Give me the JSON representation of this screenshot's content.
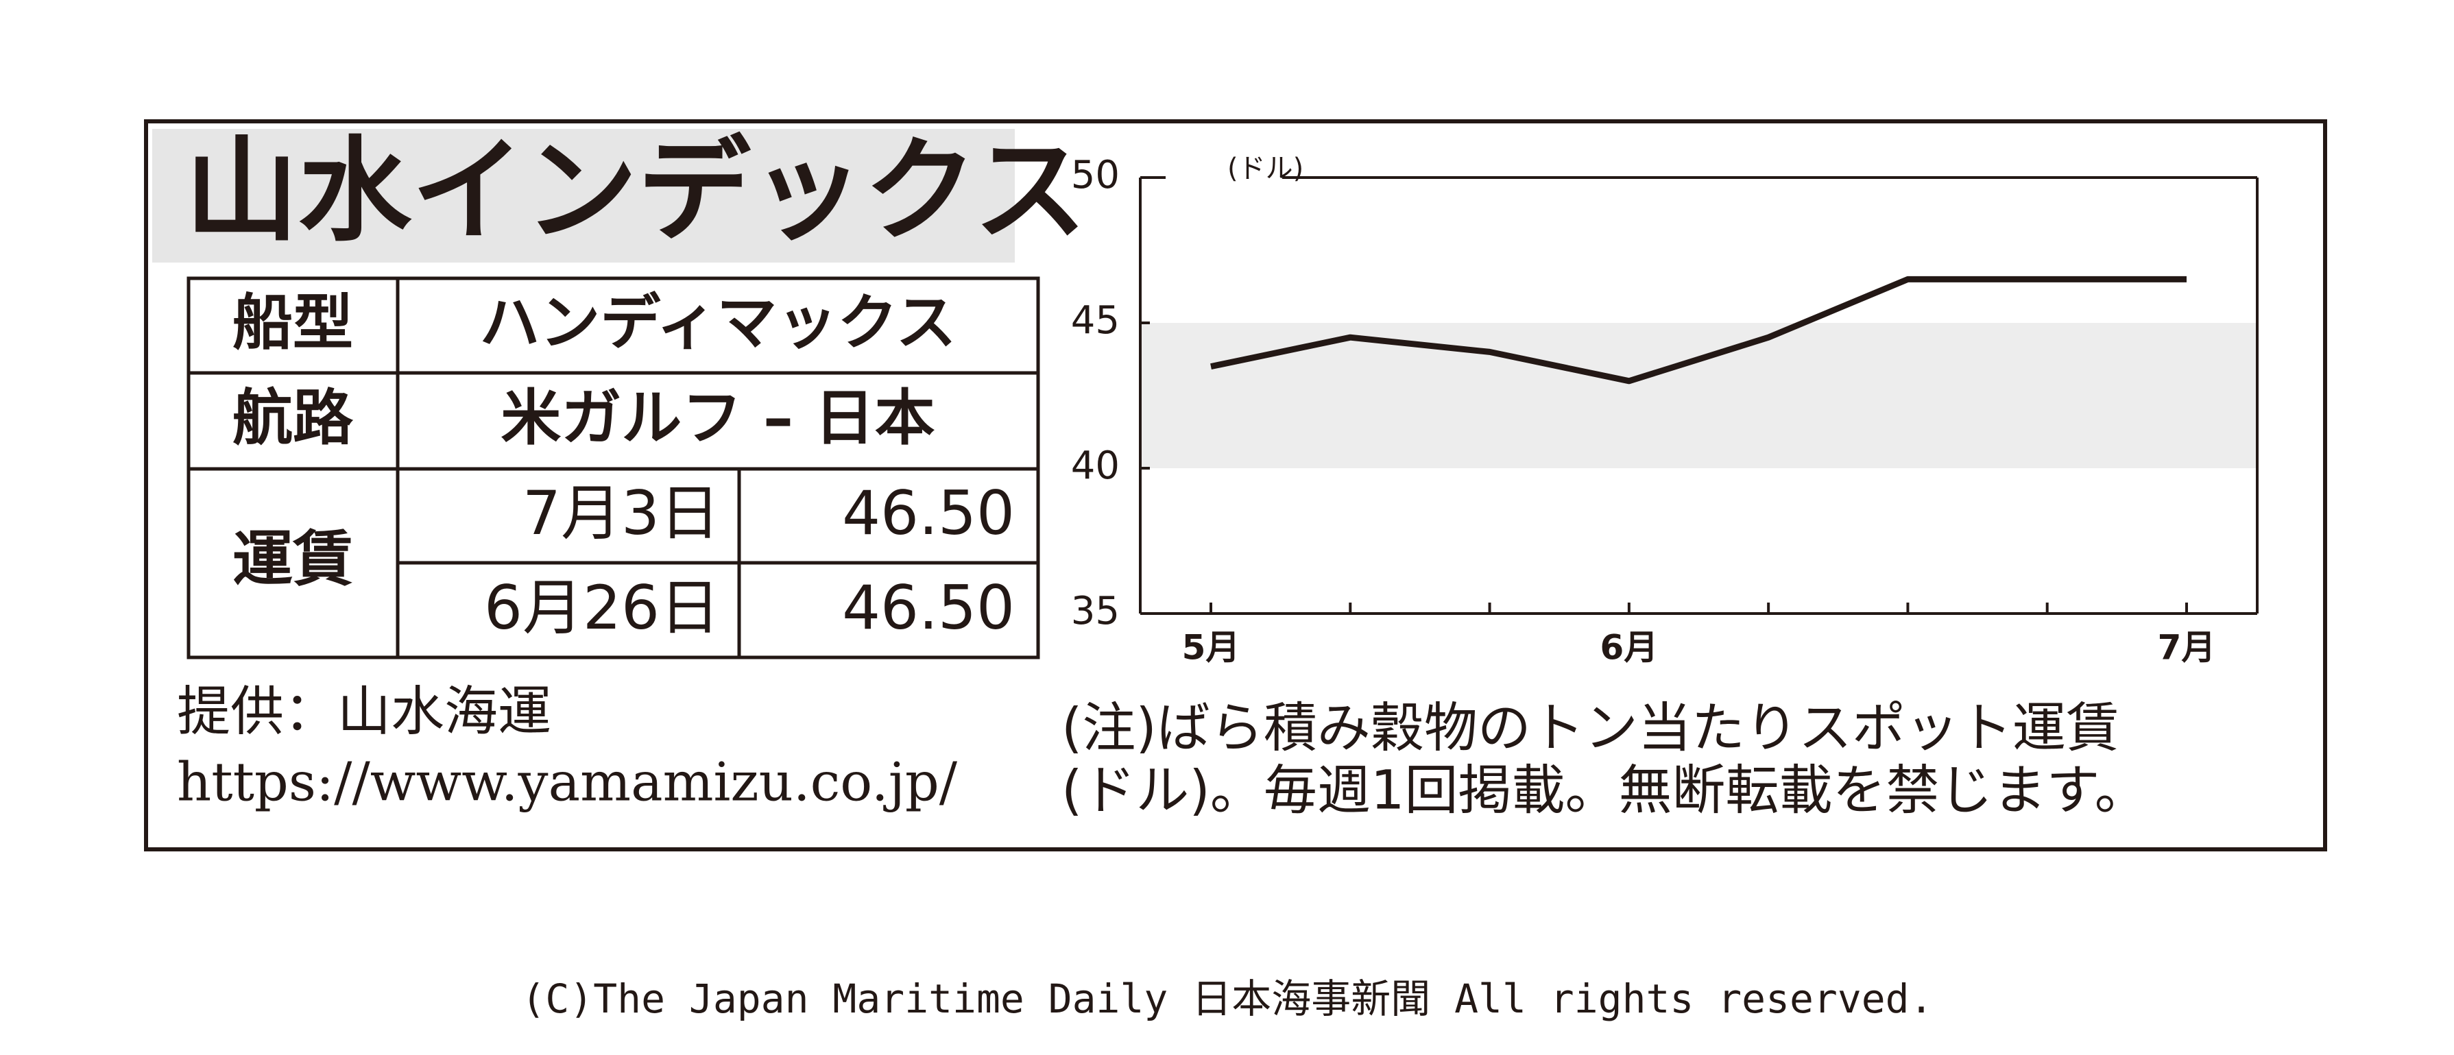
{
  "title": "山水インデックス",
  "table": {
    "rows": [
      [
        "船型",
        "ハンディマックス"
      ],
      [
        "航路",
        "米ガルフ – 日本"
      ]
    ],
    "fare": {
      "label": "運賃",
      "rows": [
        [
          "7月3日",
          "46.50"
        ],
        [
          "6月26日",
          "46.50"
        ]
      ]
    }
  },
  "source": [
    "提供：山水海運",
    "https://www.yamamizu.co.jp/"
  ],
  "note": [
    "(注)ばら積み穀物のトン当たりスポット運賃",
    "(ドル)。毎週1回掲載。無断転載を禁じます。"
  ],
  "copyright": "(C)The Japan Maritime Daily 日本海事新聞 All rights reserved.",
  "chart_data": {
    "type": "line",
    "y_unit": "(ドル)",
    "categories": [
      "5月",
      null,
      null,
      "6月",
      null,
      null,
      null,
      "7月"
    ],
    "values": [
      43.5,
      44.5,
      44,
      43,
      44.5,
      46.5,
      46.5,
      46.5
    ],
    "color": "#231815",
    "ylim": [
      35,
      50
    ],
    "yticks": [
      35,
      40,
      45,
      50
    ],
    "shaded_range": [
      40,
      45
    ],
    "shade_color": "#ededed"
  }
}
